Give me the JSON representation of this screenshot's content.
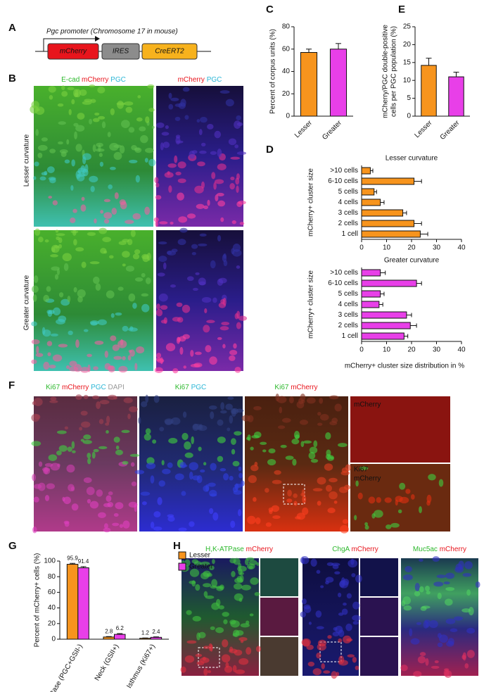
{
  "panel_labels": [
    "A",
    "B",
    "C",
    "D",
    "E",
    "F",
    "G",
    "H"
  ],
  "construct": {
    "title": "Pgc promoter (Chromosome 17 in mouse)",
    "elements": [
      "mCherry",
      "IRES",
      "CreERT2"
    ],
    "colors": [
      "#e8141c",
      "#8c8c8c",
      "#f7b21d"
    ]
  },
  "image_panels": {
    "B": {
      "headers": [
        [
          {
            "text": "E-cad",
            "color": "#2db82d"
          },
          {
            "text": "mCherry",
            "color": "#e8141c"
          },
          {
            "text": "PGC",
            "color": "#2ab6d6"
          }
        ],
        [
          {
            "text": "mCherry",
            "color": "#e8141c"
          },
          {
            "text": "PGC",
            "color": "#2ab6d6"
          }
        ]
      ],
      "rows": [
        "Lesser curvature",
        "Greater curvature"
      ]
    },
    "F": {
      "headers": [
        [
          {
            "text": "Ki67",
            "color": "#2db82d"
          },
          {
            "text": "mCherry",
            "color": "#e8141c"
          },
          {
            "text": "PGC",
            "color": "#2ab6d6"
          },
          {
            "text": "DAPI",
            "color": "#9a9a9a"
          }
        ],
        [
          {
            "text": "Ki67",
            "color": "#2db82d"
          },
          {
            "text": "PGC",
            "color": "#2ab6d6"
          }
        ],
        [
          {
            "text": "Ki67",
            "color": "#2db82d"
          },
          {
            "text": "mCherry",
            "color": "#e8141c"
          }
        ]
      ],
      "insets": [
        "mCherry",
        "Ki67",
        "mCherry"
      ]
    },
    "H": {
      "headers": [
        [
          {
            "text": "H,K-ATPase",
            "color": "#2db82d"
          },
          {
            "text": "mCherry",
            "color": "#e8141c"
          }
        ],
        [
          {
            "text": "ChgA",
            "color": "#2db82d"
          },
          {
            "text": "mCherry",
            "color": "#e8141c"
          }
        ],
        [
          {
            "text": "Muc5ac",
            "color": "#2db82d"
          },
          {
            "text": "mCherry",
            "color": "#e8141c"
          }
        ]
      ]
    }
  },
  "chart_data": [
    {
      "type": "bar",
      "ylabel": "Percent of corpus units (%)",
      "categories": [
        "Lesser",
        "Greater"
      ],
      "values": [
        57,
        60
      ],
      "errors": [
        3,
        5
      ],
      "colors": [
        "#f7941d",
        "#e83fe8"
      ],
      "ylim": [
        0,
        80
      ],
      "yticks": [
        0,
        20,
        40,
        60,
        80
      ]
    },
    {
      "type": "bar",
      "ylabel": [
        "mCherry/PGC double-positive",
        "cells per PGC population (%)"
      ],
      "categories": [
        "Lesser",
        "Greater"
      ],
      "values": [
        14.2,
        11
      ],
      "errors": [
        2,
        1.3
      ],
      "colors": [
        "#f7941d",
        "#e83fe8"
      ],
      "ylim": [
        0,
        25
      ],
      "yticks": [
        0,
        5,
        10,
        15,
        20,
        25
      ]
    },
    {
      "type": "barh",
      "title": "Lesser curvature",
      "ylabel": "mCherry+ cluster size",
      "categories": [
        ">10 cells",
        "6-10 cells",
        "5 cells",
        "4 cells",
        "3 cells",
        "2 cells",
        "1 cell"
      ],
      "values": [
        3.5,
        21,
        5,
        7.5,
        16.5,
        21,
        23.5
      ],
      "errors": [
        1,
        3,
        1,
        1.5,
        1.5,
        3,
        3
      ],
      "color": "#f7941d",
      "xlim": [
        0,
        40
      ],
      "xticks": [
        0,
        10,
        20,
        30,
        40
      ]
    },
    {
      "type": "barh",
      "title": "Greater curvature",
      "ylabel": "mCherry+ cluster size",
      "xlabel": "mCherry+ cluster size distribution in %",
      "categories": [
        ">10 cells",
        "6-10 cells",
        "5 cells",
        "4 cells",
        "3 cells",
        "2 cells",
        "1 cell"
      ],
      "values": [
        7.5,
        22,
        7.5,
        7,
        18,
        19.5,
        17
      ],
      "errors": [
        2,
        2,
        1.5,
        1.5,
        2,
        2.5,
        1.5
      ],
      "color": "#e83fe8",
      "xlim": [
        0,
        40
      ],
      "xticks": [
        0,
        10,
        20,
        30,
        40
      ]
    },
    {
      "type": "grouped_bar",
      "ylabel": "Percent of mCherry+ cells (%)",
      "categories": [
        "Base (PGC+GSII-)",
        "Neck (GSII+)",
        "Isthmus (Ki67+)"
      ],
      "series": [
        {
          "name": "Lesser",
          "color": "#f7941d",
          "values": [
            95.9,
            2.8,
            1.2
          ],
          "errors": [
            1.2,
            0.6,
            0.4
          ]
        },
        {
          "name": "Greater",
          "color": "#e83fe8",
          "values": [
            91.4,
            6.2,
            2.4
          ],
          "errors": [
            1.5,
            1,
            0.6
          ]
        }
      ],
      "ylim": [
        0,
        100
      ],
      "yticks": [
        0,
        20,
        40,
        60,
        80,
        100
      ],
      "legend": "upper right"
    }
  ]
}
